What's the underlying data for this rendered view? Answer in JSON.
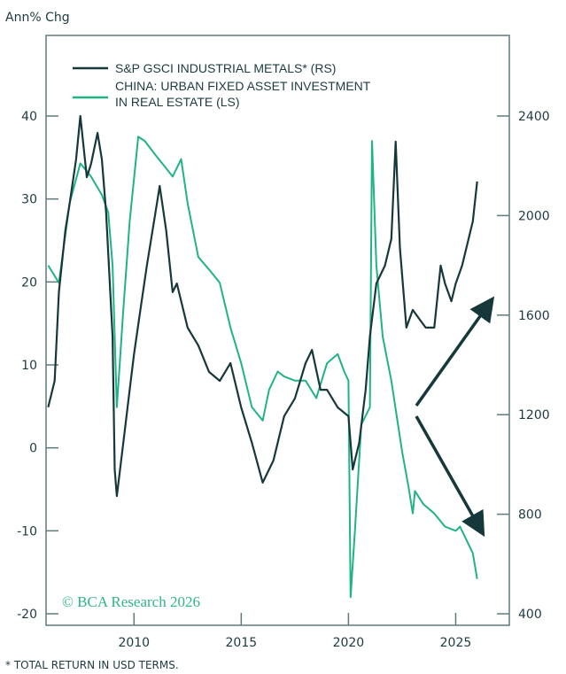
{
  "chart_data": {
    "type": "line",
    "yunit_label": "Ann% Chg",
    "footnote": "* TOTAL RETURN IN USD TERMS.",
    "watermark": "© BCA Research 2026",
    "legend_placement": "top-left",
    "xlim": [
      2005.9,
      2027.5
    ],
    "xticks": [
      2010,
      2015,
      2020,
      2025
    ],
    "ylim_left": [
      -20,
      40
    ],
    "yticks_left": [
      -20,
      -10,
      0,
      10,
      20,
      30,
      40
    ],
    "ylim_right": [
      400,
      2400
    ],
    "yticks_right": [
      400,
      800,
      1200,
      1600,
      2000,
      2400
    ],
    "legend": [
      "S&P GSCI INDUSTRIAL METALS* (RS)",
      "CHINA: URBAN FIXED ASSET INVESTMENT",
      "IN REAL ESTATE (LS)"
    ],
    "series": [
      {
        "name": "S&P GSCI INDUSTRIAL METALS* (RS)",
        "axis": "right",
        "color": "#16383b",
        "x": [
          2006.0,
          2006.3,
          2006.5,
          2006.8,
          2007.0,
          2007.3,
          2007.5,
          2007.8,
          2008.0,
          2008.3,
          2008.5,
          2008.7,
          2009.0,
          2009.1,
          2009.2,
          2009.5,
          2009.8,
          2010.0,
          2010.3,
          2010.6,
          2011.0,
          2011.2,
          2011.5,
          2011.8,
          2012.0,
          2012.5,
          2013.0,
          2013.5,
          2014.0,
          2014.5,
          2015.0,
          2015.5,
          2016.0,
          2016.5,
          2017.0,
          2017.5,
          2018.0,
          2018.3,
          2018.7,
          2019.0,
          2019.5,
          2020.0,
          2020.2,
          2020.5,
          2020.8,
          2021.0,
          2021.3,
          2021.7,
          2022.0,
          2022.2,
          2022.4,
          2022.7,
          2023.0,
          2023.3,
          2023.6,
          2024.0,
          2024.3,
          2024.5,
          2024.8,
          2025.0,
          2025.3,
          2025.6,
          2025.8,
          2026.0
        ],
        "y": [
          1230,
          1336,
          1692,
          1941,
          2048,
          2226,
          2400,
          2154,
          2208,
          2332,
          2226,
          2012,
          1514,
          980,
          873,
          1087,
          1300,
          1443,
          1621,
          1799,
          2012,
          2119,
          1941,
          1692,
          1727,
          1550,
          1478,
          1372,
          1336,
          1407,
          1229,
          1087,
          927,
          1016,
          1194,
          1265,
          1407,
          1460,
          1300,
          1300,
          1229,
          1194,
          980,
          1087,
          1300,
          1514,
          1727,
          1799,
          1906,
          2297,
          1870,
          1550,
          1621,
          1585,
          1550,
          1550,
          1799,
          1727,
          1656,
          1727,
          1799,
          1906,
          1977,
          2137
        ]
      },
      {
        "name": "CHINA: URBAN FIXED ASSET INVESTMENT IN REAL ESTATE (LS)",
        "axis": "left",
        "color": "#1fb386",
        "x": [
          2006.0,
          2006.5,
          2007.0,
          2007.5,
          2008.0,
          2008.5,
          2008.8,
          2009.0,
          2009.2,
          2009.5,
          2009.8,
          2010.2,
          2010.5,
          2011.0,
          2011.5,
          2011.8,
          2012.2,
          2012.5,
          2013.0,
          2013.5,
          2014.0,
          2014.5,
          2015.0,
          2015.5,
          2016.0,
          2016.3,
          2016.7,
          2017.0,
          2017.5,
          2018.0,
          2018.5,
          2019.0,
          2019.5,
          2019.8,
          2020.0,
          2020.1,
          2020.3,
          2020.6,
          2021.0,
          2021.1,
          2021.3,
          2021.6,
          2022.0,
          2022.5,
          2022.8,
          2023.0,
          2023.1,
          2023.5,
          2024.0,
          2024.5,
          2025.0,
          2025.2,
          2025.5,
          2025.8,
          2026.0
        ],
        "y": [
          22,
          19.9,
          29.5,
          34.3,
          32.7,
          30.5,
          28.4,
          22,
          4.9,
          16.6,
          27.3,
          37.5,
          37,
          35.3,
          33.7,
          32.7,
          34.8,
          29.5,
          23,
          21.5,
          19.9,
          14.5,
          10.2,
          4.9,
          3.3,
          7,
          9.2,
          8.6,
          8.1,
          8.1,
          6,
          10.2,
          11.3,
          9.2,
          8.1,
          -18,
          -10,
          2.8,
          4.9,
          37,
          22,
          13.4,
          8.1,
          -0.4,
          -4.7,
          -7.9,
          -5.2,
          -6.8,
          -7.9,
          -9.5,
          -10,
          -9.5,
          -11.1,
          -12.7,
          -15.8
        ]
      }
    ],
    "annotations": [
      "arrow-up",
      "arrow-down"
    ]
  }
}
